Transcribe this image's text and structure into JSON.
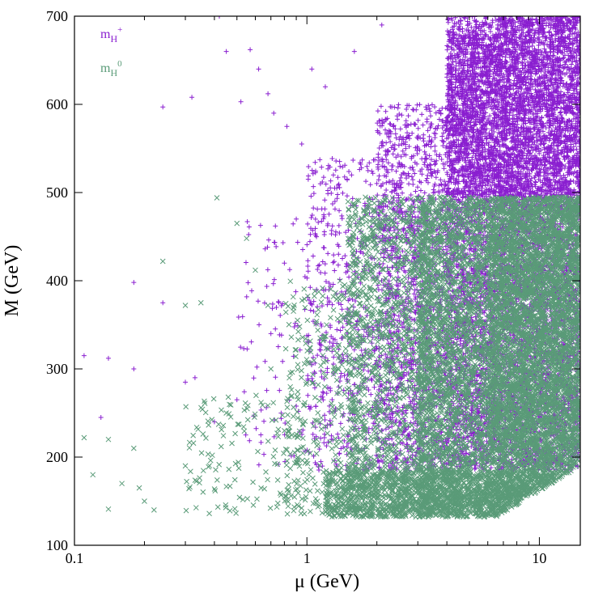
{
  "chart_data": {
    "type": "scatter",
    "xlabel": "μ (GeV)",
    "ylabel": "M (GeV)",
    "xscale": "log",
    "xlim": [
      0.1,
      15
    ],
    "ylim": [
      100,
      700
    ],
    "xticks": [
      0.1,
      1,
      10
    ],
    "xtick_labels": [
      "0.1",
      "1",
      "10"
    ],
    "yticks": [
      100,
      200,
      300,
      400,
      500,
      600,
      700
    ],
    "ytick_labels": [
      "100",
      "200",
      "300",
      "400",
      "500",
      "600",
      "700"
    ],
    "grid": false,
    "legend_position": "top-left",
    "series": [
      {
        "name": "mH+",
        "label_main": "m",
        "label_sub": "H",
        "label_sup": "+",
        "marker": "plus",
        "color": "#8a1fd0",
        "points": [
          [
            0.11,
            315
          ],
          [
            0.13,
            245
          ],
          [
            0.14,
            312
          ],
          [
            0.18,
            398
          ],
          [
            0.18,
            300
          ],
          [
            0.24,
            597
          ],
          [
            0.24,
            375
          ],
          [
            0.32,
            608
          ],
          [
            0.33,
            290
          ],
          [
            0.42,
            700
          ],
          [
            0.45,
            660
          ],
          [
            0.52,
            603
          ],
          [
            0.57,
            662
          ],
          [
            0.62,
            640
          ],
          [
            0.68,
            612
          ],
          [
            0.72,
            590
          ],
          [
            0.82,
            575
          ],
          [
            0.95,
            555
          ],
          [
            1.05,
            640
          ],
          [
            1.2,
            620
          ],
          [
            1.6,
            660
          ],
          [
            2.1,
            690
          ],
          [
            0.5,
            265
          ],
          [
            0.7,
            340
          ],
          [
            0.8,
            420
          ],
          [
            1.1,
            390
          ],
          [
            0.3,
            285
          ],
          [
            0.4,
            240
          ],
          [
            0.9,
            470
          ],
          [
            1.3,
            520
          ]
        ],
        "density": [
          {
            "x": [
              0.5,
              1.0
            ],
            "y": [
              190,
              470
            ],
            "n": 90
          },
          {
            "x": [
              1.0,
              2.0
            ],
            "y": [
              185,
              540
            ],
            "n": 520
          },
          {
            "x": [
              2.0,
              4.0
            ],
            "y": [
              185,
              600
            ],
            "n": 1500
          },
          {
            "x": [
              4.0,
              6.5
            ],
            "y": [
              185,
              680
            ],
            "n": 2300
          },
          {
            "x": [
              6.5,
              15.0
            ],
            "y": [
              185,
              700
            ],
            "n": 4000
          },
          {
            "x": [
              4.0,
              15.0
            ],
            "y": [
              495,
              700
            ],
            "n": 2200
          }
        ]
      },
      {
        "name": "mH0",
        "label_main": "m",
        "label_sub": "H",
        "label_sup": "0",
        "marker": "cross",
        "color": "#5a9b78",
        "points": [
          [
            0.11,
            222
          ],
          [
            0.12,
            180
          ],
          [
            0.14,
            141
          ],
          [
            0.14,
            220
          ],
          [
            0.16,
            170
          ],
          [
            0.18,
            210
          ],
          [
            0.19,
            165
          ],
          [
            0.22,
            140
          ],
          [
            0.24,
            422
          ],
          [
            0.3,
            372
          ],
          [
            0.35,
            375
          ],
          [
            0.41,
            494
          ],
          [
            0.5,
            465
          ],
          [
            0.55,
            448
          ],
          [
            0.6,
            412
          ],
          [
            0.68,
            372
          ],
          [
            0.2,
            150
          ],
          [
            0.3,
            190
          ],
          [
            0.45,
            250
          ],
          [
            0.7,
            300
          ]
        ],
        "density": [
          {
            "x": [
              0.3,
              1.0
            ],
            "y": [
              135,
              270
            ],
            "n": 150
          },
          {
            "x": [
              0.8,
              1.8
            ],
            "y": [
              135,
              400
            ],
            "n": 350
          },
          {
            "x": [
              1.5,
              3.5
            ],
            "y": [
              132,
              495
            ],
            "n": 1400
          },
          {
            "x": [
              3.0,
              6.5
            ],
            "y": [
              132,
              495
            ],
            "n": 2600
          },
          {
            "x": [
              6.5,
              15.0
            ],
            "y": [
              132,
              495
            ],
            "n": 3500
          },
          {
            "x": [
              6.0,
              15.0
            ],
            "y": [
              200,
              495
            ],
            "n": 1800
          },
          {
            "x": [
              1.2,
              15.0
            ],
            "y": [
              132,
              185
            ],
            "n": 1600
          }
        ]
      }
    ]
  }
}
